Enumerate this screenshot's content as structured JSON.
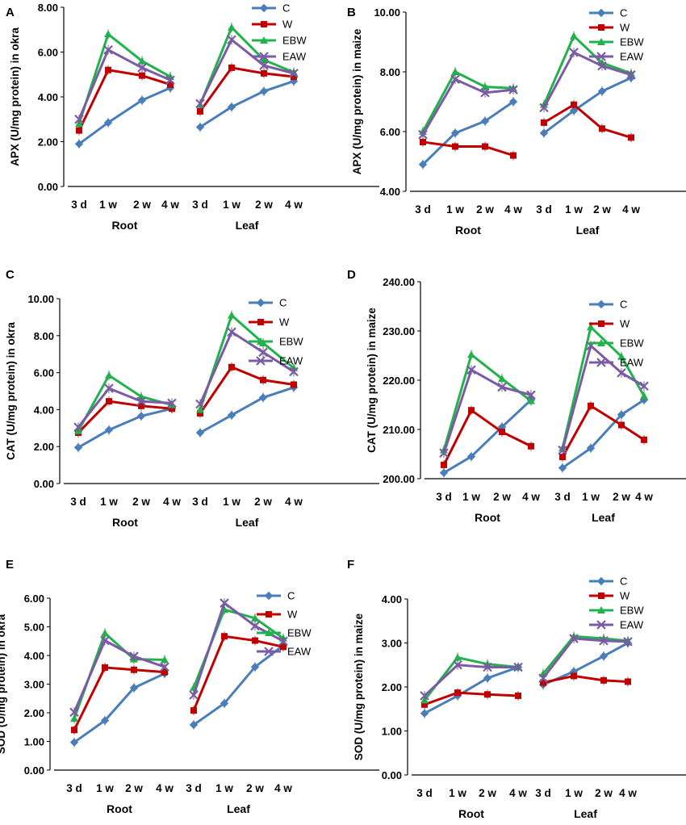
{
  "colors": {
    "C": "#4A7EBB",
    "W": "#C00000",
    "EBW": "#22B24C",
    "EAW": "#7B5BA6",
    "axis": "#000000",
    "text": "#000000"
  },
  "chart_data": [
    {
      "panel": "A",
      "type": "line",
      "ylabel": "APX (U/mg protein) in okra",
      "ylim": [
        0,
        8
      ],
      "yticks": [
        "0.00",
        "2.00",
        "4.00",
        "6.00",
        "8.00"
      ],
      "groups": [
        "Root",
        "Leaf"
      ],
      "categories": [
        "3 d",
        "1 w",
        "2 w",
        "4 w"
      ],
      "legend": [
        "C",
        "W",
        "EBW",
        "EAW"
      ],
      "series": [
        {
          "name": "C",
          "marker": "diamond",
          "root": [
            1.9,
            2.85,
            3.85,
            4.4
          ],
          "leaf": [
            2.65,
            3.55,
            4.25,
            4.7
          ]
        },
        {
          "name": "W",
          "marker": "square",
          "root": [
            2.5,
            5.2,
            4.95,
            4.55
          ],
          "leaf": [
            3.35,
            5.3,
            5.05,
            4.9
          ]
        },
        {
          "name": "EBW",
          "marker": "triangle",
          "root": [
            2.8,
            6.8,
            5.6,
            4.9
          ],
          "leaf": [
            3.65,
            7.1,
            5.65,
            5.1
          ]
        },
        {
          "name": "EAW",
          "marker": "x",
          "root": [
            3.0,
            6.1,
            5.3,
            4.75
          ],
          "leaf": [
            3.7,
            6.55,
            5.4,
            5.05
          ]
        }
      ]
    },
    {
      "panel": "B",
      "type": "line",
      "ylabel": "APX (U/mg protein) in maize",
      "ylim": [
        4,
        10
      ],
      "yticks": [
        "4.00",
        "6.00",
        "8.00",
        "10.00"
      ],
      "groups": [
        "Root",
        "Leaf"
      ],
      "categories": [
        "3 d",
        "1 w",
        "2 w",
        "4 w"
      ],
      "legend": [
        "C",
        "W",
        "EBW",
        "EAW"
      ],
      "series": [
        {
          "name": "C",
          "marker": "diamond",
          "root": [
            4.9,
            5.95,
            6.35,
            7.0
          ],
          "leaf": [
            5.95,
            6.7,
            7.35,
            7.8
          ]
        },
        {
          "name": "W",
          "marker": "square",
          "root": [
            5.65,
            5.5,
            5.5,
            5.2
          ],
          "leaf": [
            6.3,
            6.9,
            6.1,
            5.8
          ]
        },
        {
          "name": "EBW",
          "marker": "triangle",
          "root": [
            6.0,
            8.0,
            7.5,
            7.45
          ],
          "leaf": [
            6.9,
            9.2,
            8.3,
            7.95
          ]
        },
        {
          "name": "EAW",
          "marker": "x",
          "root": [
            5.9,
            7.75,
            7.3,
            7.4
          ],
          "leaf": [
            6.8,
            8.65,
            8.2,
            7.9
          ]
        }
      ]
    },
    {
      "panel": "C",
      "type": "line",
      "ylabel": "CAT (U/mg protein) in okra",
      "ylim": [
        0,
        10
      ],
      "yticks": [
        "0.00",
        "2.00",
        "4.00",
        "6.00",
        "8.00",
        "10.00"
      ],
      "groups": [
        "Root",
        "Leaf"
      ],
      "categories": [
        "3 d",
        "1 w",
        "2 w",
        "4 w"
      ],
      "legend": [
        "C",
        "W",
        "EBW",
        "EAW"
      ],
      "series": [
        {
          "name": "C",
          "marker": "diamond",
          "root": [
            1.95,
            2.9,
            3.65,
            4.05
          ],
          "leaf": [
            2.75,
            3.7,
            4.65,
            5.2
          ]
        },
        {
          "name": "W",
          "marker": "square",
          "root": [
            2.75,
            4.45,
            4.2,
            4.05
          ],
          "leaf": [
            3.8,
            6.3,
            5.6,
            5.35
          ]
        },
        {
          "name": "EBW",
          "marker": "triangle",
          "root": [
            2.85,
            5.85,
            4.7,
            4.25
          ],
          "leaf": [
            4.0,
            9.1,
            7.6,
            6.25
          ]
        },
        {
          "name": "EAW",
          "marker": "x",
          "root": [
            3.05,
            5.15,
            4.45,
            4.35
          ],
          "leaf": [
            4.3,
            8.2,
            7.1,
            6.05
          ]
        }
      ]
    },
    {
      "panel": "D",
      "type": "line",
      "ylabel": "CAT (U/mg protein) in maize",
      "ylim": [
        200,
        240
      ],
      "yticks": [
        "200.00",
        "210.00",
        "220.00",
        "230.00",
        "240.00"
      ],
      "groups": [
        "Root",
        "Leaf"
      ],
      "categories": [
        "3 d",
        "1 w",
        "2 w",
        "4 w"
      ],
      "legend": [
        "C",
        "W",
        "EBW",
        "EAW"
      ],
      "series": [
        {
          "name": "C",
          "marker": "diamond",
          "root": [
            201.2,
            204.5,
            210.5,
            216.0
          ],
          "leaf": [
            202.2,
            206.2,
            213.0,
            216.0
          ]
        },
        {
          "name": "W",
          "marker": "square",
          "root": [
            202.8,
            213.9,
            209.5,
            206.6
          ],
          "leaf": [
            204.4,
            214.8,
            210.9,
            207.9
          ]
        },
        {
          "name": "EBW",
          "marker": "triangle",
          "root": [
            205.8,
            225.2,
            220.3,
            215.8
          ],
          "leaf": [
            206.2,
            230.8,
            224.8,
            216.8
          ]
        },
        {
          "name": "EAW",
          "marker": "x",
          "root": [
            205.2,
            222.1,
            218.6,
            217.0
          ],
          "leaf": [
            205.8,
            227.0,
            221.5,
            218.8
          ]
        }
      ]
    },
    {
      "panel": "E",
      "type": "line",
      "ylabel": "SOD (U/mg protein) in okra",
      "ylim": [
        0,
        6
      ],
      "yticks": [
        "0.00",
        "1.00",
        "2.00",
        "3.00",
        "4.00",
        "5.00",
        "6.00"
      ],
      "groups": [
        "Root",
        "Leaf"
      ],
      "categories": [
        "3 d",
        "1 w",
        "2 w",
        "4 w"
      ],
      "legend": [
        "C",
        "W",
        "EBW",
        "EAW"
      ],
      "series": [
        {
          "name": "C",
          "marker": "diamond",
          "root": [
            0.97,
            1.73,
            2.87,
            3.37
          ],
          "leaf": [
            1.58,
            2.33,
            3.6,
            4.35
          ]
        },
        {
          "name": "W",
          "marker": "square",
          "root": [
            1.4,
            3.58,
            3.5,
            3.42
          ],
          "leaf": [
            2.08,
            4.67,
            4.52,
            4.3
          ]
        },
        {
          "name": "EBW",
          "marker": "triangle",
          "root": [
            1.8,
            4.78,
            3.87,
            3.85
          ],
          "leaf": [
            2.88,
            5.6,
            5.3,
            4.6
          ]
        },
        {
          "name": "EAW",
          "marker": "x",
          "root": [
            2.02,
            4.52,
            3.97,
            3.6
          ],
          "leaf": [
            2.62,
            5.83,
            5.03,
            4.5
          ]
        }
      ]
    },
    {
      "panel": "F",
      "type": "line",
      "ylabel": "SOD (U/mg protein) in maize",
      "ylim": [
        0,
        4
      ],
      "yticks": [
        "0.00",
        "1.00",
        "2.00",
        "3.00",
        "4.00"
      ],
      "groups": [
        "Root",
        "Leaf"
      ],
      "categories": [
        "3 d",
        "1 w",
        "2 w",
        "4 w"
      ],
      "legend": [
        "C",
        "W",
        "EBW",
        "EAW"
      ],
      "series": [
        {
          "name": "C",
          "marker": "diamond",
          "root": [
            1.4,
            1.8,
            2.2,
            2.45
          ],
          "leaf": [
            2.05,
            2.35,
            2.7,
            3.0
          ]
        },
        {
          "name": "W",
          "marker": "square",
          "root": [
            1.6,
            1.87,
            1.83,
            1.8
          ],
          "leaf": [
            2.1,
            2.25,
            2.15,
            2.12
          ]
        },
        {
          "name": "EBW",
          "marker": "triangle",
          "root": [
            1.7,
            2.67,
            2.52,
            2.45
          ],
          "leaf": [
            2.3,
            3.15,
            3.1,
            3.05
          ]
        },
        {
          "name": "EAW",
          "marker": "x",
          "root": [
            1.8,
            2.5,
            2.45,
            2.45
          ],
          "leaf": [
            2.2,
            3.1,
            3.05,
            3.03
          ]
        }
      ]
    }
  ]
}
